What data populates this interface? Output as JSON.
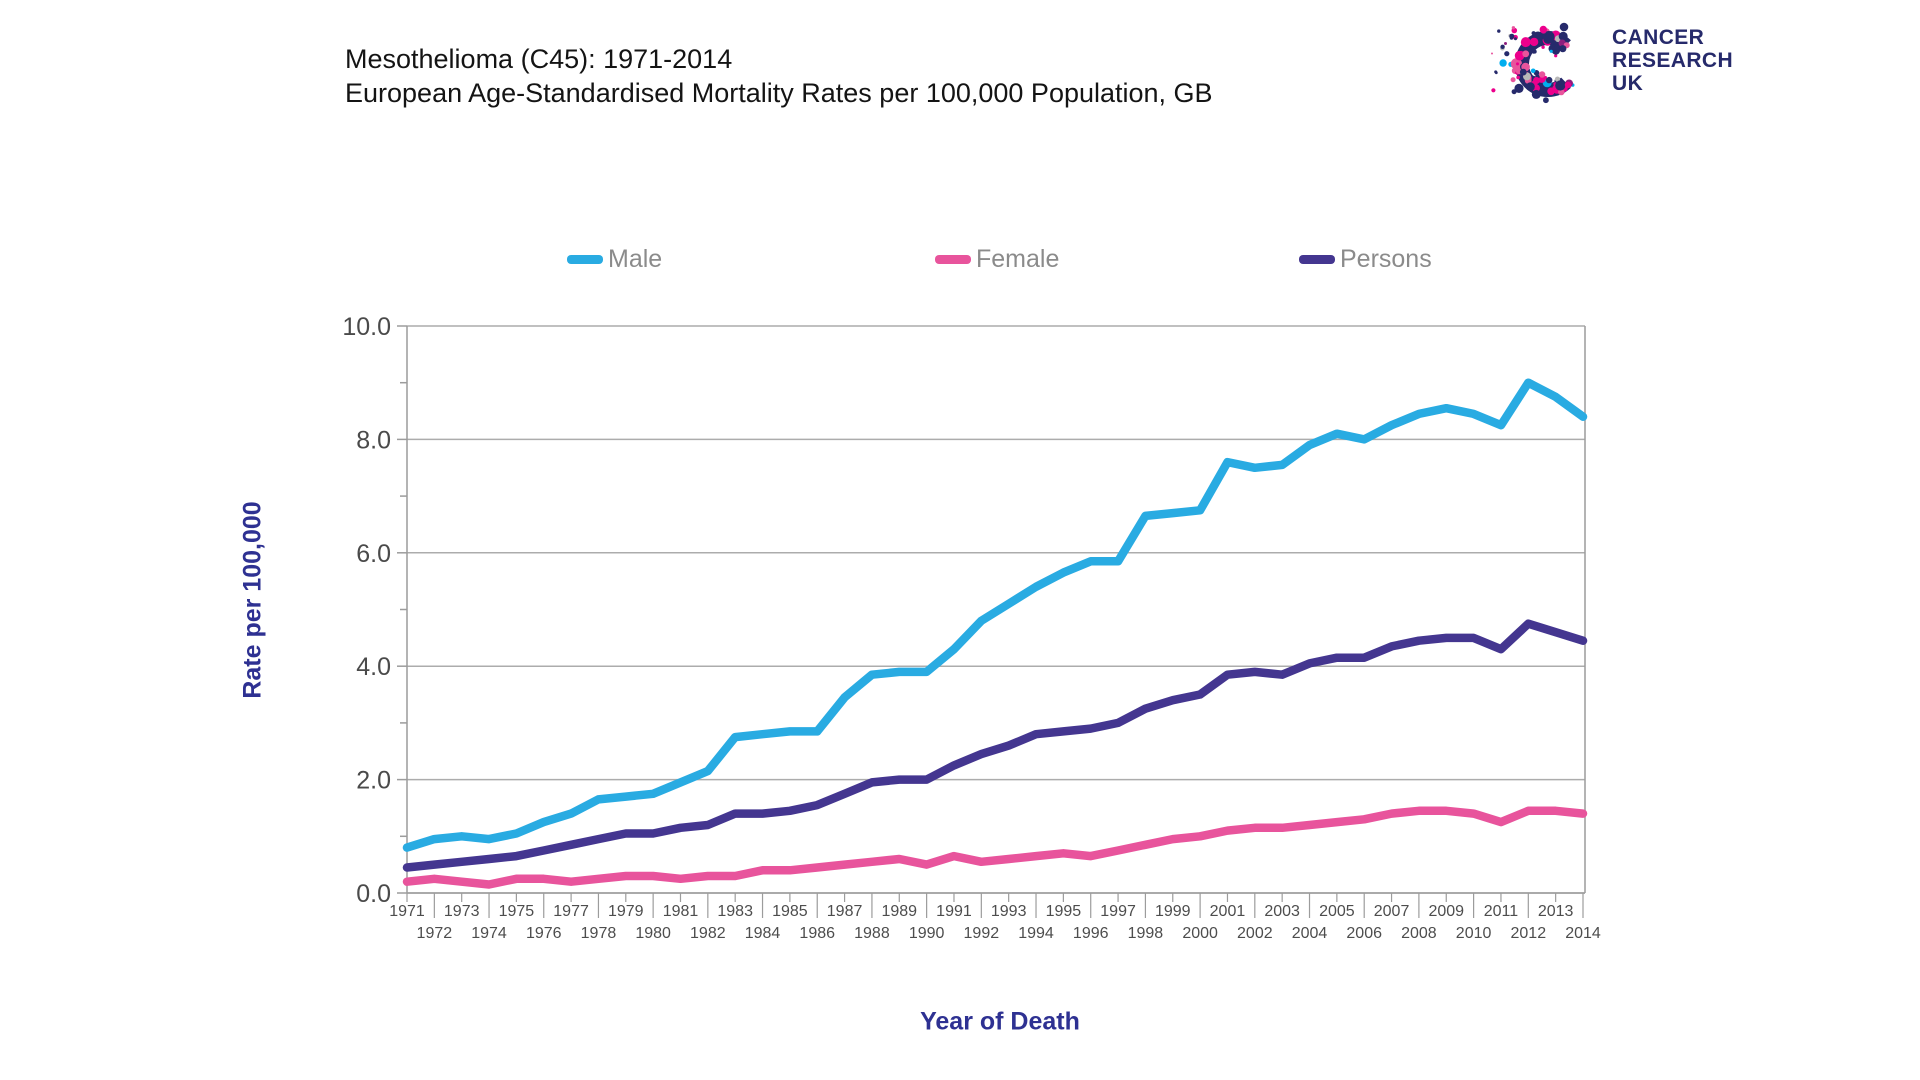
{
  "header": {
    "title_line1": "Mesothelioma (C45): 1971-2014",
    "title_line2": "European Age-Standardised Mortality Rates per 100,000 Population, GB"
  },
  "logo": {
    "line1": "CANCER",
    "line2": "RESEARCH",
    "line3": "UK",
    "palette": {
      "navy": "#262A6B",
      "magenta": "#EC008C",
      "pink": "#E8549C",
      "cyan": "#00AEEF",
      "gray": "#B8B8B8",
      "plum": "#8E1F7E"
    }
  },
  "axes": {
    "y_title": "Rate per 100,000",
    "x_title": "Year of Death"
  },
  "chart_data": {
    "type": "line",
    "title": "Mesothelioma (C45): 1971-2014",
    "subtitle": "European Age-Standardised Mortality Rates per 100,000 Population, GB",
    "xlabel": "Year of Death",
    "ylabel": "Rate per 100,000",
    "ylim": [
      0,
      10
    ],
    "y_major_step": 2,
    "y_minor_step": 1,
    "grid": "horizontal-major",
    "legend_position": "top",
    "x": [
      1971,
      1972,
      1973,
      1974,
      1975,
      1976,
      1977,
      1978,
      1979,
      1980,
      1981,
      1982,
      1983,
      1984,
      1985,
      1986,
      1987,
      1988,
      1989,
      1990,
      1991,
      1992,
      1993,
      1994,
      1995,
      1996,
      1997,
      1998,
      1999,
      2000,
      2001,
      2002,
      2003,
      2004,
      2005,
      2006,
      2007,
      2008,
      2009,
      2010,
      2011,
      2012,
      2013,
      2014
    ],
    "series": [
      {
        "name": "Male",
        "color": "#29ABE2",
        "values": [
          0.8,
          0.95,
          1.0,
          0.95,
          1.05,
          1.25,
          1.4,
          1.65,
          1.7,
          1.75,
          1.95,
          2.15,
          2.75,
          2.8,
          2.85,
          2.85,
          3.45,
          3.85,
          3.9,
          3.9,
          4.3,
          4.8,
          5.1,
          5.4,
          5.65,
          5.85,
          5.85,
          6.65,
          6.7,
          6.75,
          7.6,
          7.5,
          7.55,
          7.9,
          8.1,
          8.0,
          8.25,
          8.45,
          8.55,
          8.45,
          8.25,
          9.0,
          8.75,
          8.4
        ]
      },
      {
        "name": "Female",
        "color": "#E8549C",
        "values": [
          0.2,
          0.25,
          0.2,
          0.15,
          0.25,
          0.25,
          0.2,
          0.25,
          0.3,
          0.3,
          0.25,
          0.3,
          0.3,
          0.4,
          0.4,
          0.45,
          0.5,
          0.55,
          0.6,
          0.5,
          0.65,
          0.55,
          0.6,
          0.65,
          0.7,
          0.65,
          0.75,
          0.85,
          0.95,
          1.0,
          1.1,
          1.15,
          1.15,
          1.2,
          1.25,
          1.3,
          1.4,
          1.45,
          1.45,
          1.4,
          1.25,
          1.45,
          1.45,
          1.4
        ]
      },
      {
        "name": "Persons",
        "color": "#443690",
        "values": [
          0.45,
          0.5,
          0.55,
          0.6,
          0.65,
          0.75,
          0.85,
          0.95,
          1.05,
          1.05,
          1.15,
          1.2,
          1.4,
          1.4,
          1.45,
          1.55,
          1.75,
          1.95,
          2.0,
          2.0,
          2.25,
          2.45,
          2.6,
          2.8,
          2.85,
          2.9,
          3.0,
          3.25,
          3.4,
          3.5,
          3.85,
          3.9,
          3.85,
          4.05,
          4.15,
          4.15,
          4.35,
          4.45,
          4.5,
          4.5,
          4.3,
          4.75,
          4.6,
          4.45
        ]
      }
    ],
    "style": {
      "grid_color": "#ACACAC",
      "axis_color": "#9C9C9C",
      "y_tick_label_color": "#4a4a4a",
      "x_tick_label_color": "#4d4d4d",
      "line_width": 8.5
    }
  }
}
